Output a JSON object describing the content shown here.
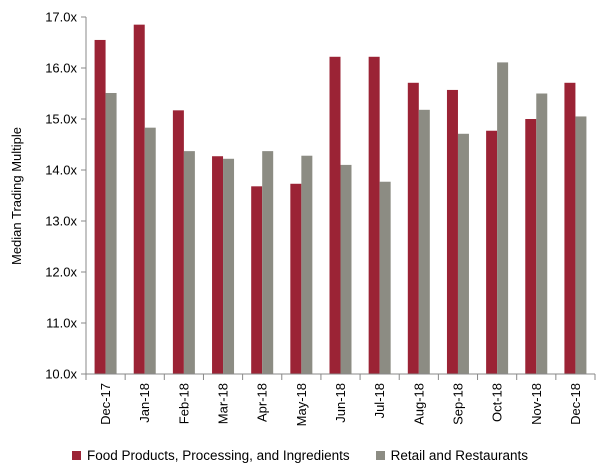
{
  "chart_data": {
    "type": "bar",
    "title": "",
    "xlabel": "",
    "ylabel": "Median Trading Multiple",
    "ylim": [
      10.0,
      17.0
    ],
    "yticks": [
      "10.0x",
      "11.0x",
      "12.0x",
      "13.0x",
      "14.0x",
      "15.0x",
      "16.0x",
      "17.0x"
    ],
    "categories": [
      "Dec-17",
      "Jan-18",
      "Feb-18",
      "Mar-18",
      "Apr-18",
      "May-18",
      "Jun-18",
      "Jul-18",
      "Aug-18",
      "Sep-18",
      "Oct-18",
      "Nov-18",
      "Dec-18"
    ],
    "series": [
      {
        "name": "Food Products, Processing, and Ingredients",
        "color": "#9b2335",
        "values": [
          16.55,
          16.85,
          15.17,
          14.27,
          13.68,
          13.73,
          16.22,
          16.22,
          15.71,
          15.57,
          14.77,
          15.0,
          15.71
        ]
      },
      {
        "name": "Retail and Restaurants",
        "color": "#8c8c83",
        "values": [
          15.51,
          14.83,
          14.37,
          14.22,
          14.37,
          14.28,
          14.1,
          13.77,
          15.18,
          14.71,
          16.11,
          15.5,
          15.05
        ]
      }
    ],
    "grid": false,
    "legend_position": "bottom"
  }
}
